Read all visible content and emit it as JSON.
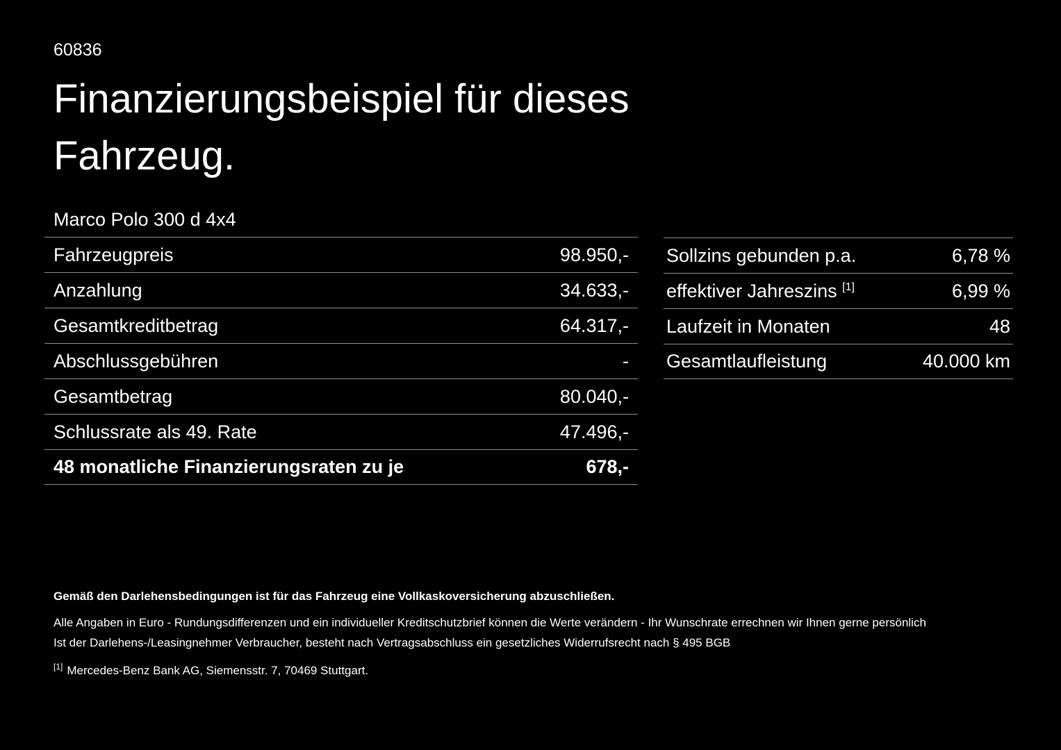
{
  "header": {
    "doc_number": "60836",
    "title": "Finanzierungsbeispiel für dieses Fahrzeug.",
    "vehicle_name": "Marco Polo 300 d 4x4"
  },
  "tables": {
    "left": {
      "rows": [
        {
          "label": "Fahrzeugpreis",
          "value": "98.950,-"
        },
        {
          "label": "Anzahlung",
          "value": "34.633,-"
        },
        {
          "label": "Gesamtkreditbetrag",
          "value": "64.317,-"
        },
        {
          "label": "Abschlussgebühren",
          "value": "-"
        },
        {
          "label": "Gesamtbetrag",
          "value": "80.040,-"
        },
        {
          "label": "Schlussrate als 49. Rate",
          "value": "47.496,-"
        },
        {
          "label": "48 monatliche Finanzierungsraten zu je",
          "value": "678,-"
        }
      ]
    },
    "right": {
      "rows": [
        {
          "label": "Sollzins gebunden p.a.",
          "value": "6,78 %"
        },
        {
          "label": "effektiver Jahreszins",
          "sup": "[1]",
          "value": "6,99 %"
        },
        {
          "label": "Laufzeit in Monaten",
          "value": "48"
        },
        {
          "label": "Gesamtlaufleistung",
          "value": "40.000 km"
        }
      ]
    }
  },
  "footer": {
    "insurance_note": "Gemäß den Darlehensbedingungen ist für das Fahrzeug eine Vollkaskoversicherung abzuschließen.",
    "disclaimer_line1": "Alle Angaben in Euro - Rundungsdifferenzen und ein individueller Kreditschutzbrief können die Werte verändern - Ihr Wunschrate errechnen wir Ihnen gerne persönlich",
    "disclaimer_line2": "Ist der Darlehens-/Leasingnehmer Verbraucher, besteht nach Vertragsabschluss ein gesetzliches Widerrufsrecht nach § 495 BGB",
    "footnote_marker": "[1]",
    "footnote_text": "Mercedes-Benz Bank AG, Siemensstr. 7, 70469 Stuttgart."
  }
}
